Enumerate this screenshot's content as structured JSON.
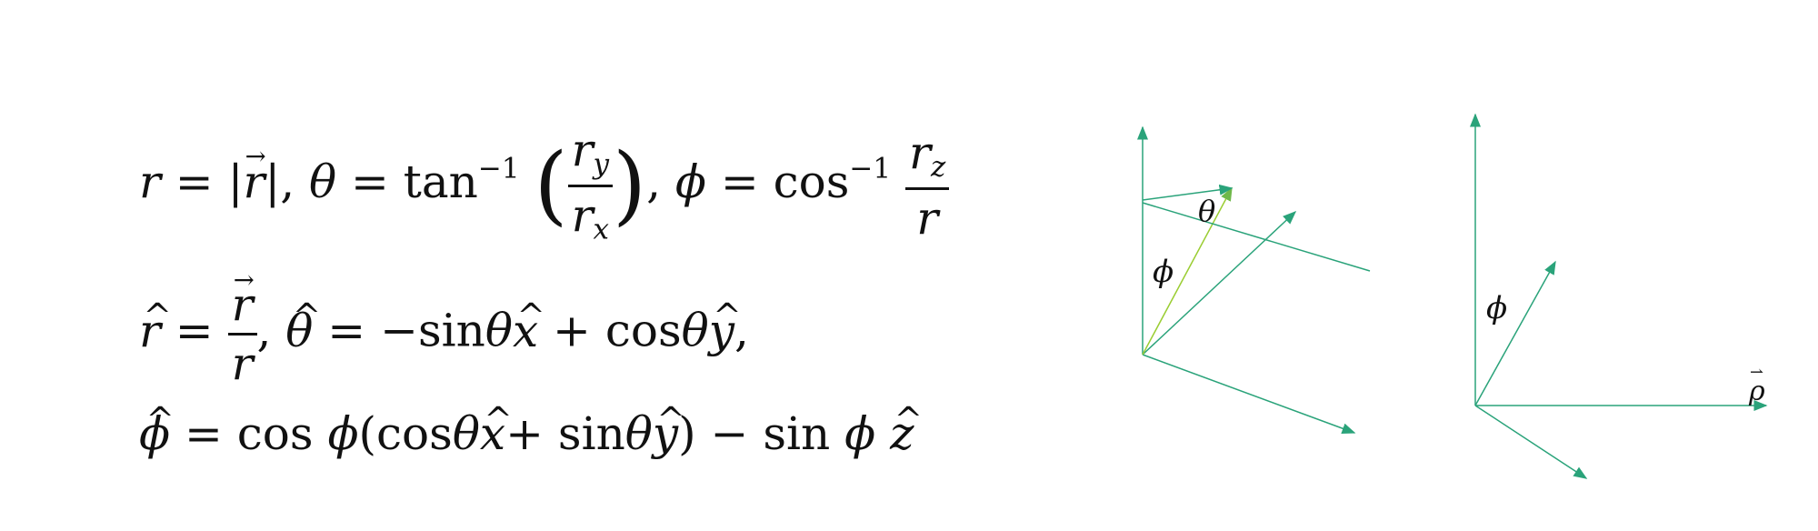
{
  "equations": {
    "line1": {
      "r_eq": "r = |",
      "r_vec": "r",
      "r_close": "|, ",
      "theta": "θ",
      "theta_eq": " = tan",
      "inv": "−1",
      "frac1_num": "r",
      "frac1_num_sub": "y",
      "frac1_den": "r",
      "frac1_den_sub": "x",
      "comma": ", ",
      "phi": "ϕ",
      "phi_eq": " = cos",
      "frac2_num": "r",
      "frac2_num_sub": "z",
      "frac2_den": "r"
    },
    "line2": {
      "rhat": "r",
      "eq": " = ",
      "frac_num": "r",
      "frac_den": "r",
      "comma": ", ",
      "thetahat": "θ",
      "rest1": " = −sin",
      "theta1": "θ",
      "xhat": "x",
      "plus": " + cos",
      "theta2": "θ",
      "yhat": "y",
      "end": ","
    },
    "line3": {
      "phihat": "ϕ",
      "eq": " = cos ",
      "phi1": "ϕ",
      "open": "(cos",
      "theta1": "θ",
      "xhat": "x",
      "plus": "+ sin",
      "theta2": "θ",
      "yhat": "y",
      "close": ") − sin ",
      "phi2": "ϕ",
      "space": " ",
      "zhat": "z"
    }
  },
  "diagram_left": {
    "label_theta": "θ",
    "label_phi": "ϕ"
  },
  "diagram_right": {
    "label_phi": "ϕ",
    "label_rho": "ρ",
    "label_rho_arrow": "⇀"
  },
  "colors": {
    "axis": "#2aa37a",
    "vector": "#9acd32"
  }
}
